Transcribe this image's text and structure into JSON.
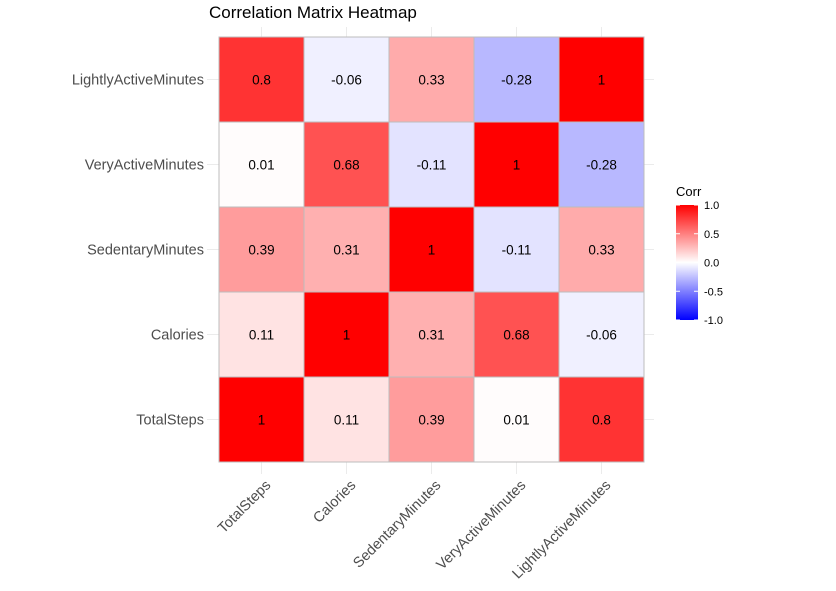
{
  "chart_data": {
    "type": "heatmap",
    "title": "Correlation Matrix Heatmap",
    "variables": [
      "TotalSteps",
      "Calories",
      "SedentaryMinutes",
      "VeryActiveMinutes",
      "LightlyActiveMinutes"
    ],
    "x_categories": [
      "TotalSteps",
      "Calories",
      "SedentaryMinutes",
      "VeryActiveMinutes",
      "LightlyActiveMinutes"
    ],
    "y_categories_top_to_bottom": [
      "LightlyActiveMinutes",
      "VeryActiveMinutes",
      "SedentaryMinutes",
      "Calories",
      "TotalSteps"
    ],
    "matrix": [
      [
        1,
        0.11,
        0.39,
        0.01,
        0.8
      ],
      [
        0.11,
        1,
        0.31,
        0.68,
        -0.06
      ],
      [
        0.39,
        0.31,
        1,
        -0.11,
        0.33
      ],
      [
        0.01,
        0.68,
        -0.11,
        1,
        -0.28
      ],
      [
        0.8,
        -0.06,
        0.33,
        -0.28,
        1
      ]
    ],
    "legend": {
      "title": "Corr",
      "ticks": [
        1.0,
        0.5,
        0.0,
        -0.5,
        -1.0
      ],
      "tick_labels": [
        "1.0",
        "0.5",
        "0.0",
        "-0.5",
        "-1.0"
      ],
      "limits": [
        -1,
        1
      ],
      "colors": {
        "low": "#0000ff",
        "mid": "#ffffff",
        "high": "#ff0000"
      },
      "placement": "right"
    },
    "xlabel": "",
    "ylabel": "",
    "grid": true
  }
}
